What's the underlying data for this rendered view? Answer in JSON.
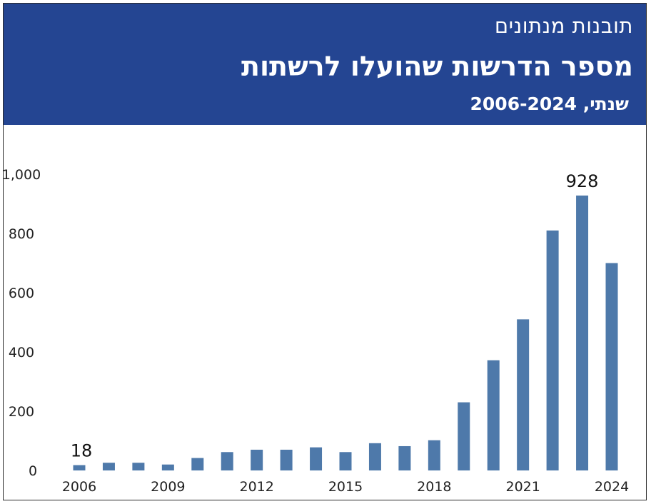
{
  "header": {
    "kicker": "תובנות מנתונים",
    "title": "מספר הדרשות שהועלו לרשתות",
    "subtitle": "שנתי, 2006-2024"
  },
  "colors": {
    "header_bg": "#244592",
    "bar": "#4e79aa"
  },
  "chart_data": {
    "type": "bar",
    "title": "מספר הדרשות שהועלו לרשתות",
    "subtitle": "שנתי, 2006-2024",
    "categories": [
      "2006",
      "2007",
      "2008",
      "2009",
      "2010",
      "2011",
      "2012",
      "2013",
      "2014",
      "2015",
      "2016",
      "2017",
      "2018",
      "2019",
      "2020",
      "2021",
      "2022",
      "2023",
      "2024"
    ],
    "values": [
      18,
      26,
      26,
      20,
      42,
      62,
      70,
      70,
      78,
      62,
      92,
      82,
      102,
      230,
      372,
      510,
      810,
      928,
      700
    ],
    "x_tick_labels": [
      "2006",
      "",
      "",
      "2009",
      "",
      "",
      "2012",
      "",
      "",
      "2015",
      "",
      "",
      "2018",
      "",
      "",
      "2021",
      "",
      "",
      "2024"
    ],
    "y_ticks": [
      0,
      200,
      400,
      600,
      800,
      1000
    ],
    "y_tick_labels": [
      "0",
      "200",
      "400",
      "600",
      "800",
      "1,000"
    ],
    "ylim": [
      0,
      1000
    ],
    "data_labels": [
      {
        "index": 0,
        "text": "18"
      },
      {
        "index": 17,
        "text": "928"
      }
    ],
    "grid": false,
    "legend": "none"
  }
}
